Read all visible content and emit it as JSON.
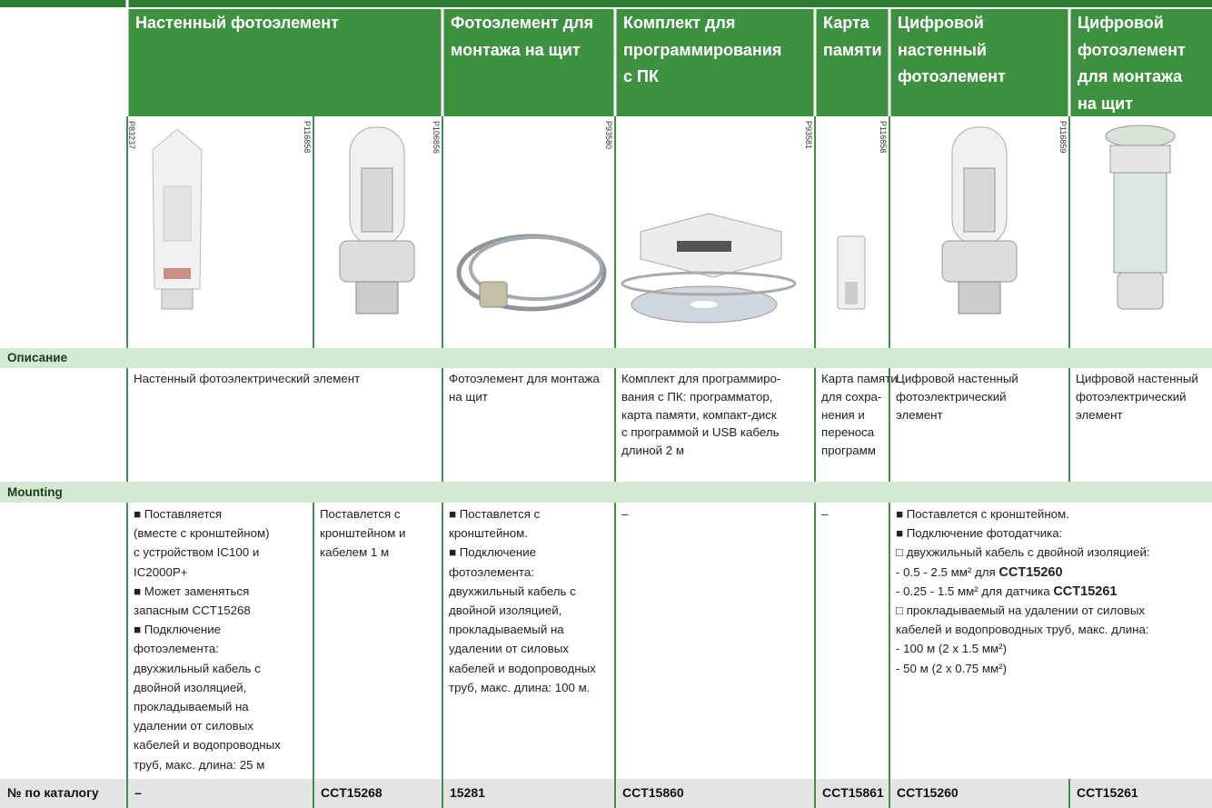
{
  "header": {
    "columns": [
      [
        "Настенный фотоэлемент"
      ],
      [
        "Фотоэлемент для",
        "монтажа на щит"
      ],
      [
        "Комплект для",
        "программирования",
        "с ПК"
      ],
      [
        "Карта",
        "памяти"
      ],
      [
        "Цифровой",
        "настенный",
        "фотоэлемент"
      ],
      [
        "Цифровой",
        "фотоэлемент",
        "для монтажа",
        "на щит"
      ]
    ]
  },
  "image_codes": [
    "P83237",
    "P116858",
    "P106856",
    "P93580",
    "P93581",
    "P116858",
    "P116859"
  ],
  "description": {
    "title": "Описание",
    "cells": [
      [
        "Настенный фотоэлектрический элемент"
      ],
      [
        "Фотоэлемент для монтажа",
        "на щит"
      ],
      [
        "Комплект для программиро-",
        "вания с ПК: программатор,",
        "карта памяти, компакт-диск",
        "с программой и USB кабель",
        "длиной 2 м"
      ],
      [
        "Карта памяти",
        "для сохра-",
        "нения и",
        "переноса",
        "программ"
      ],
      [
        "Цифровой настенный",
        "фотоэлектрический",
        "элемент"
      ],
      [
        "Цифровой настенный",
        "фотоэлектрический",
        "элемент"
      ]
    ]
  },
  "mounting": {
    "title": "Mounting",
    "cells": [
      [
        "■  Поставляется",
        "(вместе с кронштейном)",
        "с устройством IC100 и",
        "IC2000P+",
        "■  Может заменяться",
        "запасным CCT15268",
        "■  Подключение",
        "фотоэлемента:",
        "двухжильный кабель с",
        "двойной изоляцией,",
        "прокладываемый на",
        "удалении от силовых",
        "кабелей и водопроводных",
        "труб, макс. длина: 25 м"
      ],
      [
        "Поставлется с",
        "кронштейном и",
        "кабелем 1 м"
      ],
      [
        "■  Поставлется с",
        "кронштейном.",
        "■  Подключение",
        "фотоэлемента:",
        "двухжильный кабель с",
        "двойной изоляцией,",
        "прокладываемый на",
        "удалении от силовых",
        "кабелей и водопроводных",
        "труб, макс. длина: 100 м."
      ],
      [
        "–"
      ],
      [
        "–"
      ],
      [
        "■  Поставлется с кронштейном.",
        "■  Подключение фотодатчика:",
        "□  двухжильный кабель с двойной изоляцией:",
        [
          "- 0.5 - 2.5 мм² для ",
          "CCT15260"
        ],
        [
          "- 0.25 - 1.5 мм² для датчика ",
          "CCT15261"
        ],
        "□  прокладываемый на удалении от силовых",
        "кабелей и водопроводных труб, макс. длина:",
        "- 100 м (2 x 1.5 мм²)",
        "- 50 м (2 x 0.75 мм²)"
      ]
    ]
  },
  "catalog": {
    "label": "№ по каталогу",
    "values": [
      "–",
      "CCT15268",
      "15281",
      "CCT15860",
      "CCT15861",
      "CCT15260",
      "CCT15261"
    ]
  }
}
